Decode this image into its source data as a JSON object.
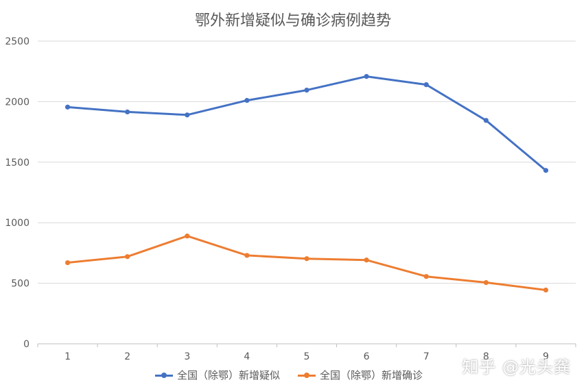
{
  "chart_data": {
    "type": "line",
    "title": "鄂外新增疑似与确诊病例趋势",
    "categories": [
      "1",
      "2",
      "3",
      "4",
      "5",
      "6",
      "7",
      "8",
      "9"
    ],
    "ylim": [
      0,
      2500
    ],
    "yticks": [
      "0",
      "500",
      "1000",
      "1500",
      "2000",
      "2500"
    ],
    "grid": true,
    "legend_position": "bottom",
    "series": [
      {
        "name": "全国（除鄂）新增疑似",
        "color": "#4472C4",
        "values": [
          1955,
          1915,
          1890,
          2010,
          2095,
          2208,
          2140,
          1845,
          1432
        ]
      },
      {
        "name": "全国（除鄂）新增确诊",
        "color": "#ED7D31",
        "values": [
          670,
          720,
          890,
          730,
          703,
          692,
          556,
          506,
          444
        ]
      }
    ]
  },
  "watermark": "知乎 @光头龚"
}
